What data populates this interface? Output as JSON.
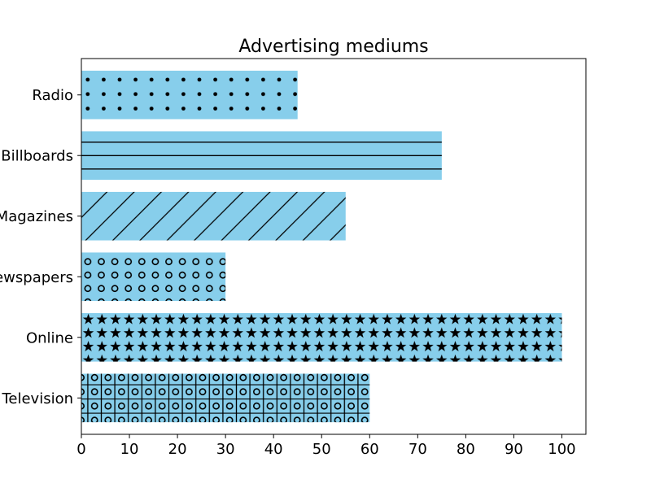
{
  "chart_data": {
    "type": "bar",
    "orientation": "horizontal",
    "title": "Advertising mediums",
    "xlabel": "",
    "ylabel": "",
    "categories": [
      "Television",
      "Online",
      "Newspapers",
      "Magazines",
      "Billboards",
      "Radio"
    ],
    "values": [
      60,
      100,
      30,
      55,
      75,
      45
    ],
    "hatches": [
      "+o",
      "*",
      "o",
      "/",
      "-",
      "."
    ],
    "bar_color": "#87CEEB",
    "hatch_color": "#000000",
    "xlim": [
      0,
      105
    ],
    "xticks": [
      0,
      10,
      20,
      30,
      40,
      50,
      60,
      70,
      80,
      90,
      100
    ],
    "grid": false
  }
}
